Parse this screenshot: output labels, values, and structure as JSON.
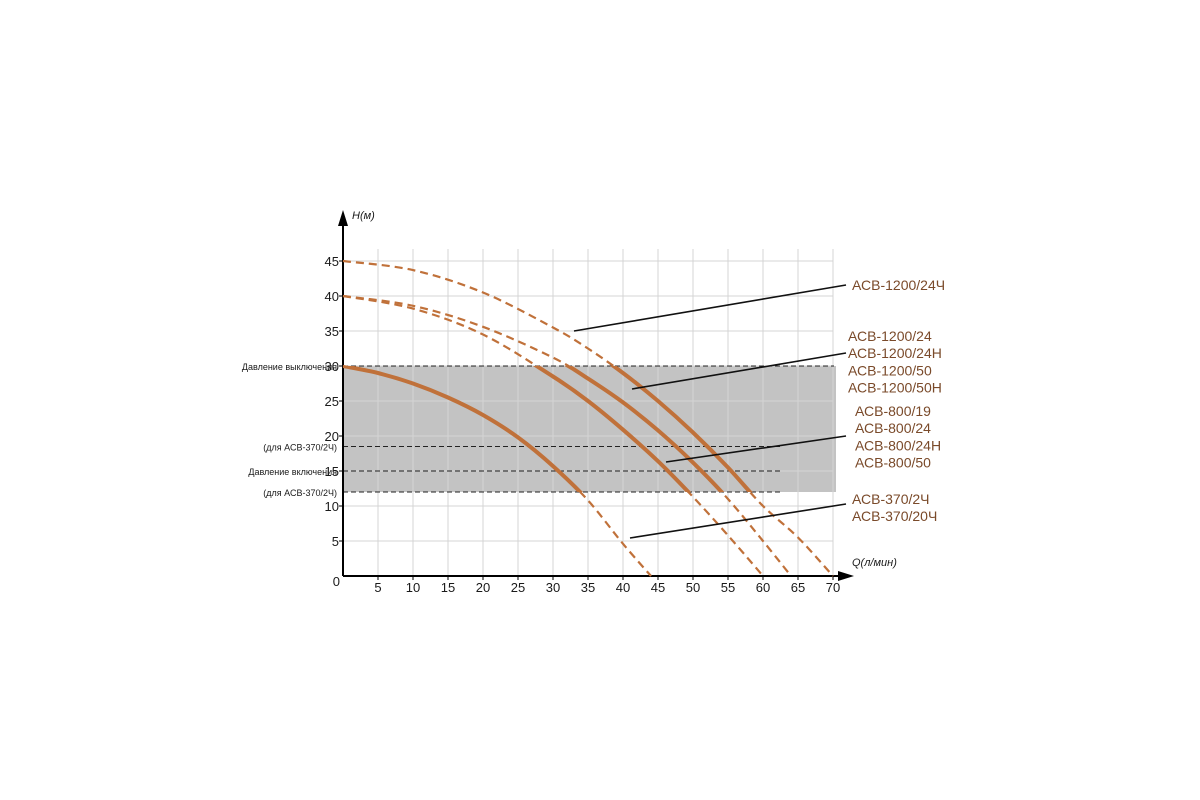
{
  "chart_data": {
    "type": "line",
    "xlabel": "Q(л/мин)",
    "ylabel": "H(м)",
    "xlim": [
      0,
      70
    ],
    "ylim": [
      0,
      45
    ],
    "x_ticks": [
      5,
      10,
      15,
      20,
      25,
      30,
      35,
      40,
      45,
      50,
      55,
      60,
      65,
      70
    ],
    "y_ticks": [
      5,
      10,
      15,
      20,
      25,
      30,
      35,
      40,
      45
    ],
    "origin_label": "0",
    "grid": true,
    "working_band": {
      "from": 12,
      "to": 30
    },
    "reference_lines": [
      {
        "y": 30,
        "label": "Давление выключения"
      },
      {
        "y": 18.5,
        "label": "(для АСВ-370/2Ч)"
      },
      {
        "y": 15,
        "label": "Давление включения"
      },
      {
        "y": 12,
        "label": "(для АСВ-370/2Ч)"
      }
    ],
    "series": [
      {
        "labels": [
          "АСВ-1200/24Ч"
        ],
        "x": [
          0,
          10,
          20,
          30,
          35,
          40,
          45,
          50,
          55,
          60,
          65,
          70
        ],
        "y": [
          45,
          43.7,
          40.5,
          35.5,
          32.5,
          29,
          25,
          20.5,
          15.5,
          10,
          5.5,
          0
        ]
      },
      {
        "labels": [
          "АСВ-1200/24",
          "АСВ-1200/24Н",
          "АСВ-1200/50",
          "АСВ-1200/50Н"
        ],
        "x": [
          0,
          10,
          20,
          30,
          35,
          40,
          45,
          50,
          55,
          60,
          64
        ],
        "y": [
          40,
          38.6,
          35.6,
          31.2,
          28.2,
          24.8,
          20.8,
          16.2,
          11,
          5,
          0
        ]
      },
      {
        "labels": [
          "АСВ-800/19",
          "АСВ-800/24",
          "АСВ-800/24Н",
          "АСВ-800/50"
        ],
        "x": [
          0,
          10,
          20,
          30,
          35,
          40,
          45,
          50,
          55,
          60
        ],
        "y": [
          40,
          38.2,
          34.5,
          28.5,
          25,
          20.9,
          16.4,
          11.3,
          5.8,
          0
        ]
      },
      {
        "labels": [
          "АСВ-370/2Ч",
          "АСВ-370/20Ч"
        ],
        "x": [
          0,
          5,
          10,
          15,
          20,
          25,
          30,
          35,
          40,
          44
        ],
        "y": [
          30,
          29,
          27.5,
          25.5,
          23,
          19.8,
          15.7,
          10.8,
          4.6,
          0
        ]
      }
    ]
  }
}
